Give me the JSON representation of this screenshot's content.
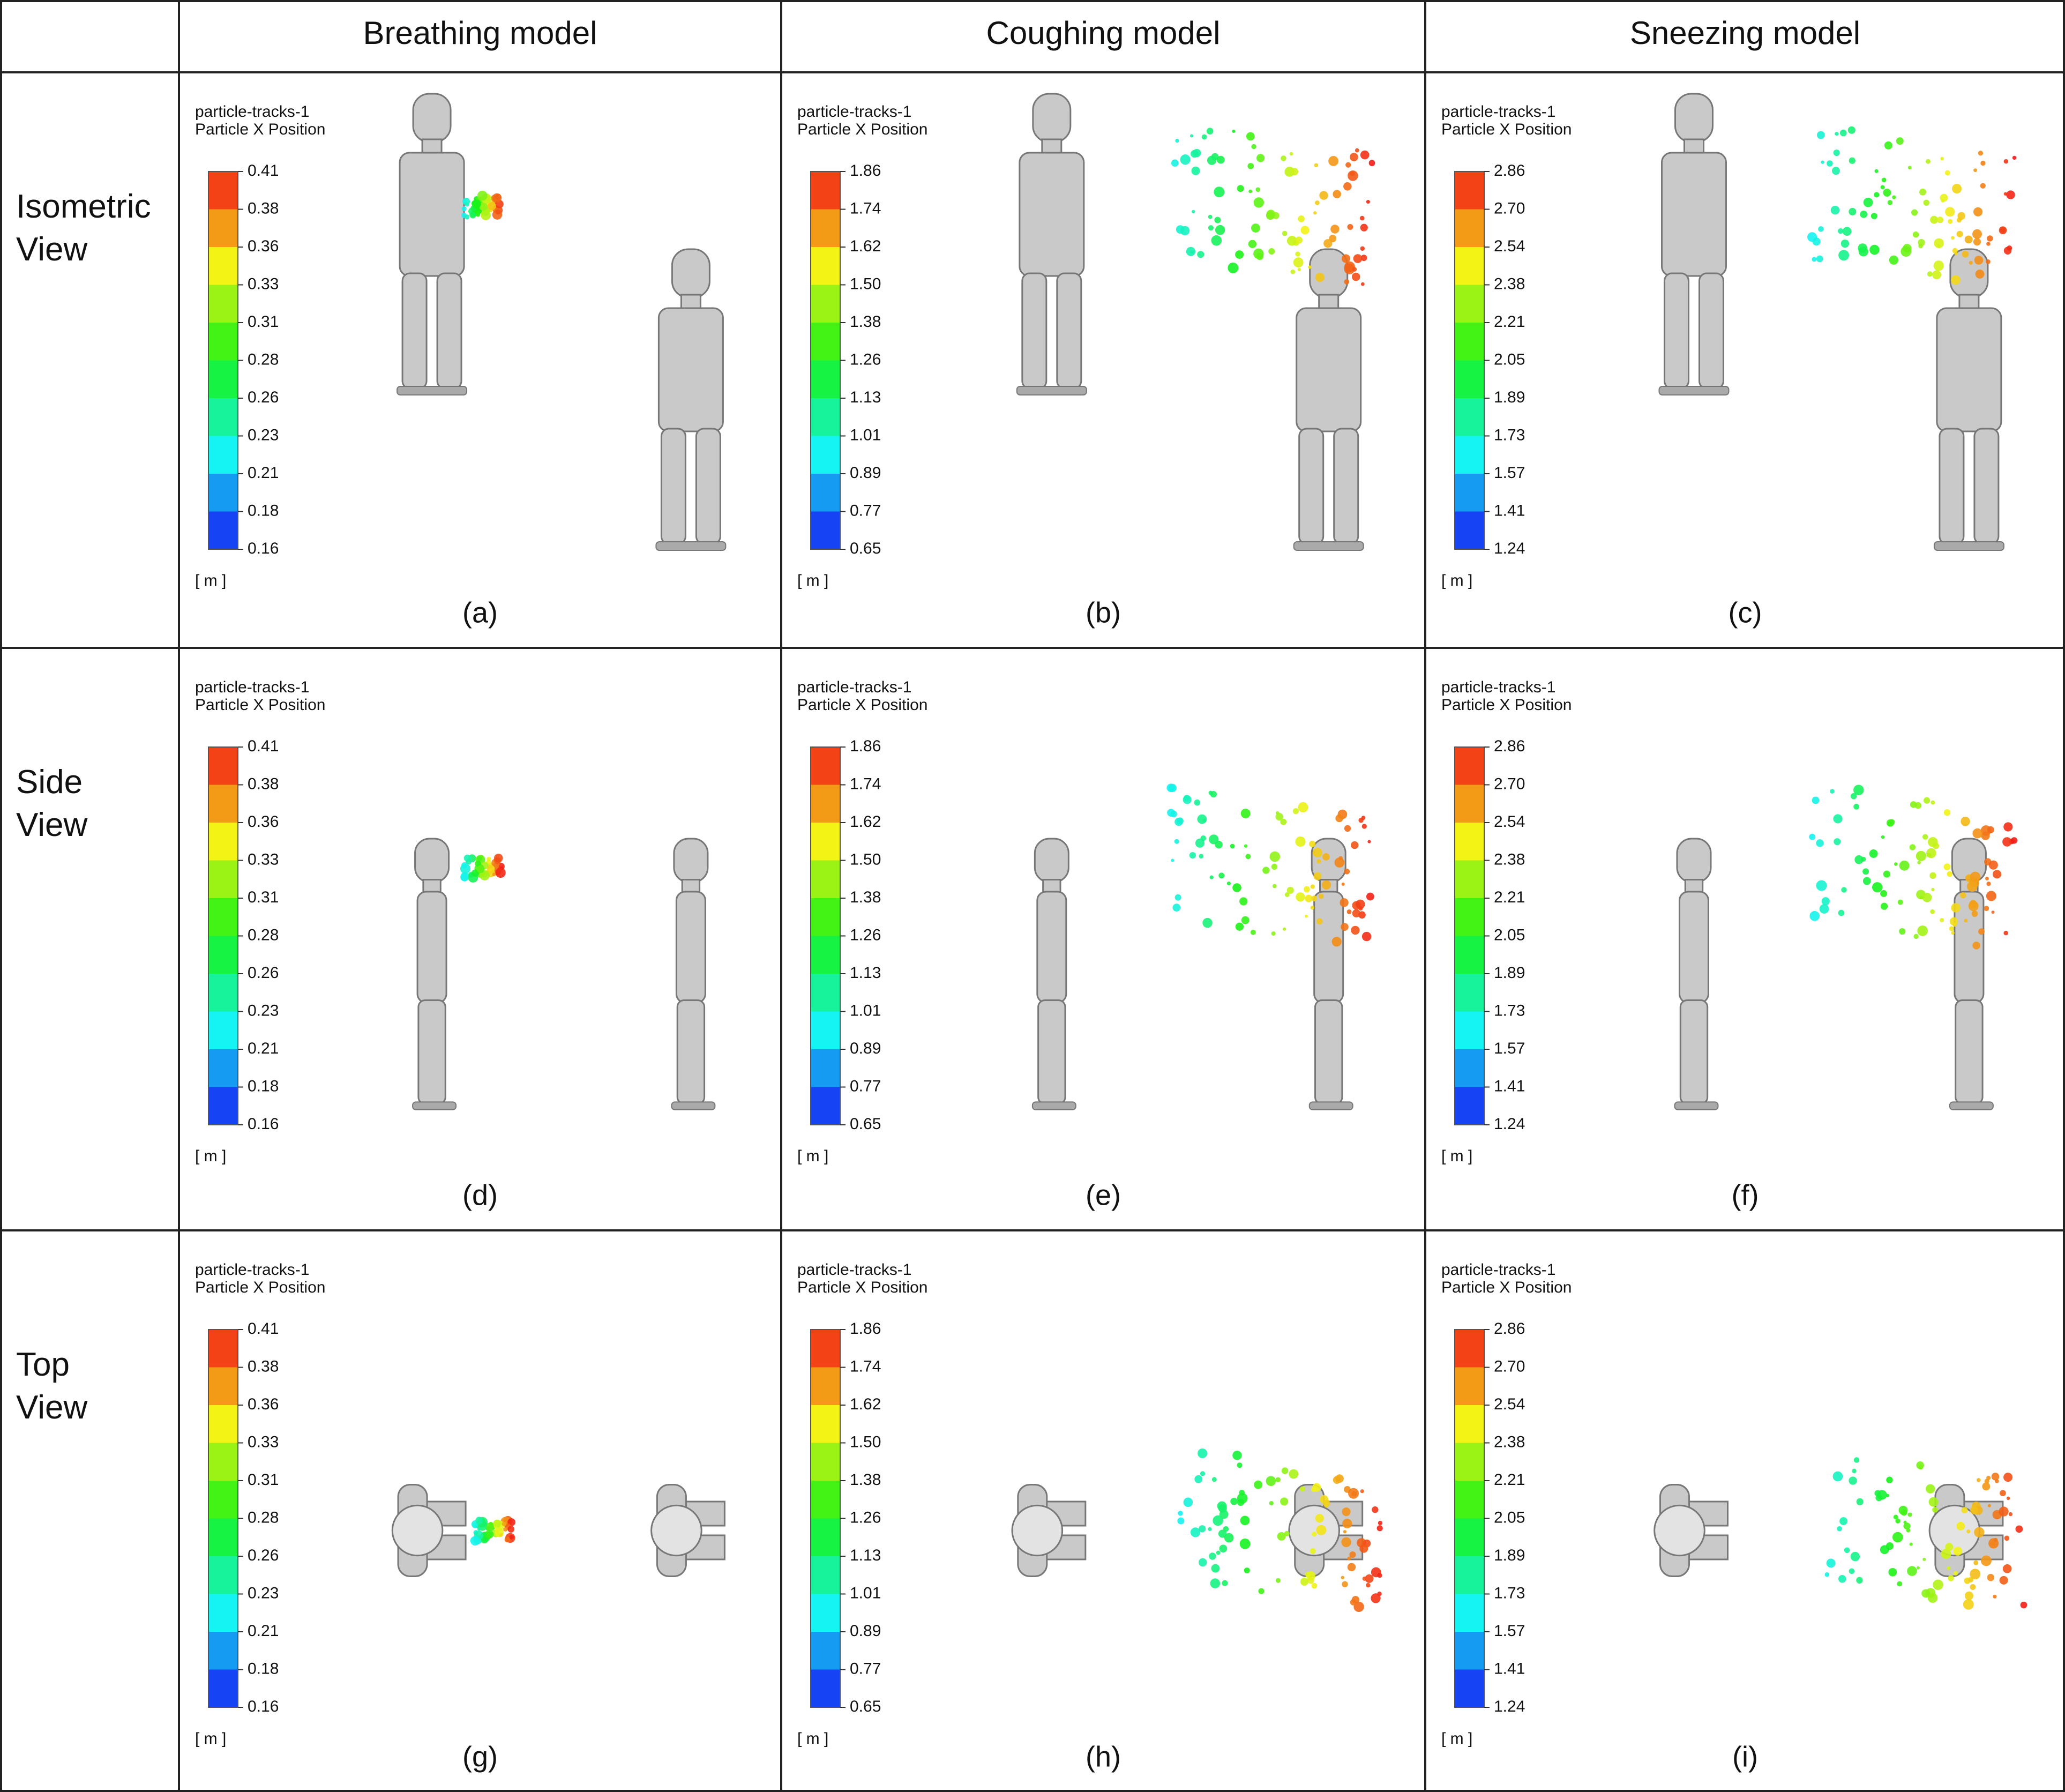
{
  "columns": [
    "Breathing model",
    "Coughing model",
    "Sneezing model"
  ],
  "rows": [
    "Isometric View",
    "Side View",
    "Top View"
  ],
  "legend": {
    "title": "particle-tracks-1",
    "subtitle": "Particle X Position",
    "unit": "[ m ]"
  },
  "scales": [
    [
      "0.41",
      "0.38",
      "0.36",
      "0.33",
      "0.31",
      "0.28",
      "0.26",
      "0.23",
      "0.21",
      "0.18",
      "0.16"
    ],
    [
      "1.86",
      "1.74",
      "1.62",
      "1.50",
      "1.38",
      "1.26",
      "1.13",
      "1.01",
      "0.89",
      "0.77",
      "0.65"
    ],
    [
      "2.86",
      "2.70",
      "2.54",
      "2.38",
      "2.21",
      "2.05",
      "1.89",
      "1.73",
      "1.57",
      "1.41",
      "1.24"
    ]
  ],
  "captions": [
    [
      "(a)",
      "(b)",
      "(c)"
    ],
    [
      "(d)",
      "(e)",
      "(f)"
    ],
    [
      "(g)",
      "(h)",
      "(i)"
    ]
  ]
}
